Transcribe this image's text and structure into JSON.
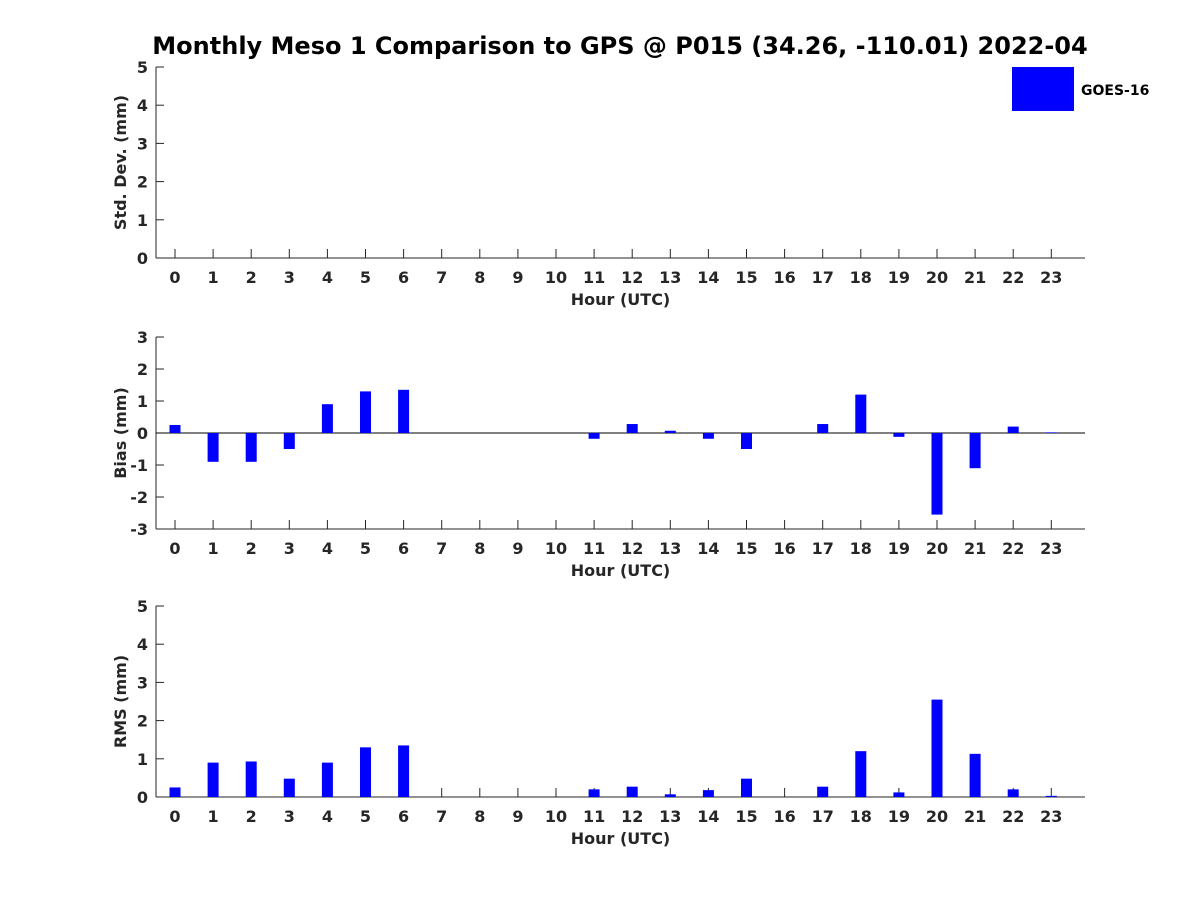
{
  "title": "Monthly Meso 1 Comparison to GPS @ P015 (34.26, -110.01) 2022-04",
  "legend": {
    "label": "GOES-16",
    "color": "#0000ff",
    "placement": "top-right"
  },
  "chart_data": [
    {
      "type": "bar",
      "ylabel": "Std. Dev. (mm)",
      "xlabel": "Hour (UTC)",
      "ylim": [
        0,
        5
      ],
      "yticks": [
        0,
        1,
        2,
        3,
        4,
        5
      ],
      "categories": [
        "0",
        "1",
        "2",
        "3",
        "4",
        "5",
        "6",
        "7",
        "8",
        "9",
        "10",
        "11",
        "12",
        "13",
        "14",
        "15",
        "16",
        "17",
        "18",
        "19",
        "20",
        "21",
        "22",
        "23"
      ],
      "series": [
        {
          "name": "GOES-16",
          "color": "#0000ff",
          "values": [
            0,
            0,
            0,
            0,
            0,
            0,
            0,
            0,
            0,
            0,
            0,
            0,
            0,
            0,
            0,
            0,
            0,
            0,
            0,
            0,
            0,
            0,
            0,
            0
          ]
        }
      ]
    },
    {
      "type": "bar",
      "ylabel": "Bias (mm)",
      "xlabel": "Hour (UTC)",
      "ylim": [
        -3,
        3
      ],
      "yticks": [
        -3,
        -2,
        -1,
        0,
        1,
        2,
        3
      ],
      "categories": [
        "0",
        "1",
        "2",
        "3",
        "4",
        "5",
        "6",
        "7",
        "8",
        "9",
        "10",
        "11",
        "12",
        "13",
        "14",
        "15",
        "16",
        "17",
        "18",
        "19",
        "20",
        "21",
        "22",
        "23"
      ],
      "series": [
        {
          "name": "GOES-16",
          "color": "#0000ff",
          "values": [
            0.25,
            -0.9,
            -0.9,
            -0.5,
            0.9,
            1.3,
            1.35,
            0,
            0,
            0,
            0,
            -0.18,
            0.28,
            0.07,
            -0.18,
            -0.5,
            0,
            0.28,
            1.2,
            -0.12,
            -2.55,
            -1.1,
            0.2,
            0.02
          ]
        }
      ]
    },
    {
      "type": "bar",
      "ylabel": "RMS (mm)",
      "xlabel": "Hour (UTC)",
      "ylim": [
        0,
        5
      ],
      "yticks": [
        0,
        1,
        2,
        3,
        4,
        5
      ],
      "categories": [
        "0",
        "1",
        "2",
        "3",
        "4",
        "5",
        "6",
        "7",
        "8",
        "9",
        "10",
        "11",
        "12",
        "13",
        "14",
        "15",
        "16",
        "17",
        "18",
        "19",
        "20",
        "21",
        "22",
        "23"
      ],
      "series": [
        {
          "name": "GOES-16",
          "color": "#0000ff",
          "values": [
            0.25,
            0.9,
            0.93,
            0.48,
            0.9,
            1.3,
            1.35,
            0,
            0,
            0,
            0,
            0.2,
            0.27,
            0.07,
            0.18,
            0.48,
            0,
            0.27,
            1.2,
            0.12,
            2.55,
            1.13,
            0.2,
            0.03
          ]
        }
      ]
    }
  ]
}
